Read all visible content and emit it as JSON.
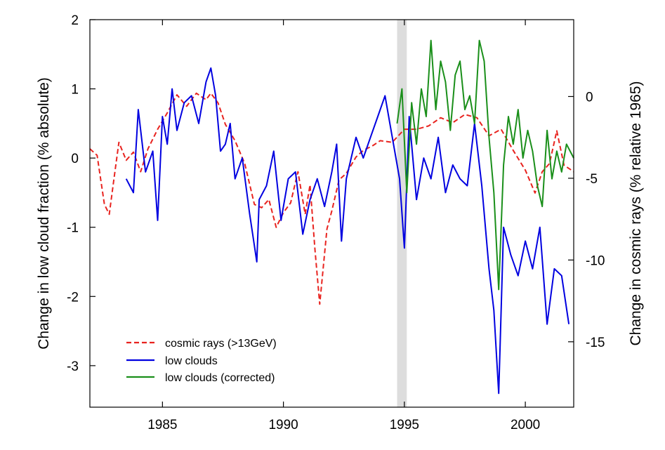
{
  "chart_data": {
    "type": "line",
    "title": "",
    "xlabel": "",
    "ylabel_left": "Change in low cloud fraction (% absolute)",
    "ylabel_right": "Change in cosmic rays (% relative 1965)",
    "xlim": [
      1982.0,
      2002.0
    ],
    "ylim_left": [
      -3.6,
      2.0
    ],
    "ylim_right": [
      -19.0,
      4.7
    ],
    "x_ticks": [
      1985,
      1990,
      1995,
      2000
    ],
    "y_ticks_left": [
      2,
      1,
      0,
      -1,
      -2,
      -3
    ],
    "y_ticks_right": [
      0,
      -5,
      -10,
      -15
    ],
    "shaded_band": {
      "x_start": 1994.7,
      "x_end": 1995.1,
      "color": "#dddddd"
    },
    "grid": false,
    "legend_position": "bottom-left",
    "series": [
      {
        "name": "cosmic rays (>13GeV)",
        "axis": "right",
        "color": "#e8231f",
        "dash": "dashed",
        "x": [
          1982.0,
          1982.3,
          1982.6,
          1982.8,
          1983.0,
          1983.2,
          1983.5,
          1983.8,
          1984.1,
          1984.4,
          1984.8,
          1985.2,
          1985.6,
          1986.0,
          1986.4,
          1986.8,
          1987.0,
          1987.3,
          1987.6,
          1988.0,
          1988.4,
          1988.8,
          1989.1,
          1989.4,
          1989.7,
          1990.0,
          1990.3,
          1990.6,
          1990.9,
          1991.1,
          1991.3,
          1991.5,
          1991.8,
          1992.0,
          1992.3,
          1992.6,
          1993.0,
          1993.3,
          1993.7,
          1994.0,
          1994.5,
          1995.0,
          1995.5,
          1996.0,
          1996.5,
          1997.0,
          1997.5,
          1998.0,
          1998.5,
          1999.0,
          1999.5,
          2000.0,
          2000.4,
          2000.7,
          2001.0,
          2001.3,
          2001.6,
          2002.0
        ],
        "y": [
          -3.2,
          -3.6,
          -6.6,
          -7.2,
          -5.0,
          -2.8,
          -3.9,
          -3.4,
          -4.6,
          -3.2,
          -2.0,
          -1.0,
          0.1,
          -0.6,
          0.2,
          -0.2,
          0.2,
          -0.4,
          -1.7,
          -2.7,
          -4.1,
          -6.6,
          -6.8,
          -6.3,
          -8.0,
          -7.1,
          -6.5,
          -4.6,
          -7.2,
          -5.4,
          -9.3,
          -12.7,
          -8.1,
          -7.0,
          -5.1,
          -4.7,
          -3.7,
          -3.3,
          -3.0,
          -2.7,
          -2.8,
          -2.0,
          -2.0,
          -1.8,
          -1.3,
          -1.6,
          -1.1,
          -1.3,
          -2.4,
          -2.0,
          -3.3,
          -4.5,
          -5.9,
          -4.6,
          -4.1,
          -2.1,
          -4.2,
          -4.6
        ]
      },
      {
        "name": "low clouds",
        "axis": "left",
        "color": "#0000e0",
        "dash": "solid",
        "x": [
          1983.5,
          1983.8,
          1984.0,
          1984.3,
          1984.6,
          1984.8,
          1985.0,
          1985.2,
          1985.4,
          1985.6,
          1985.9,
          1986.2,
          1986.5,
          1986.8,
          1987.0,
          1987.2,
          1987.4,
          1987.6,
          1987.8,
          1988.0,
          1988.3,
          1988.6,
          1988.9,
          1989.0,
          1989.3,
          1989.6,
          1989.9,
          1990.2,
          1990.5,
          1990.8,
          1991.1,
          1991.4,
          1991.7,
          1992.0,
          1992.2,
          1992.4,
          1992.6,
          1992.8,
          1993.0,
          1993.3,
          1993.6,
          1993.9,
          1994.2,
          1994.4,
          1994.6,
          1994.8,
          1995.0,
          1995.2,
          1995.5,
          1995.8,
          1996.1,
          1996.4,
          1996.7,
          1997.0,
          1997.3,
          1997.6,
          1997.9,
          1998.2,
          1998.5,
          1998.7,
          1998.9,
          1999.1,
          1999.4,
          1999.7,
          2000.0,
          2000.3,
          2000.6,
          2000.9,
          2001.2,
          2001.5,
          2001.8
        ],
        "y": [
          -0.3,
          -0.5,
          0.7,
          -0.2,
          0.1,
          -0.9,
          0.6,
          0.2,
          1.0,
          0.4,
          0.8,
          0.9,
          0.5,
          1.1,
          1.3,
          0.9,
          0.1,
          0.2,
          0.5,
          -0.3,
          0.0,
          -0.8,
          -1.5,
          -0.6,
          -0.4,
          0.1,
          -0.9,
          -0.3,
          -0.2,
          -1.1,
          -0.6,
          -0.3,
          -0.7,
          -0.2,
          0.2,
          -1.2,
          -0.3,
          0.0,
          0.3,
          0.0,
          0.3,
          0.6,
          0.9,
          0.5,
          0.1,
          -0.3,
          -1.3,
          0.6,
          -0.6,
          0.0,
          -0.3,
          0.3,
          -0.5,
          -0.1,
          -0.3,
          -0.4,
          0.5,
          -0.4,
          -1.6,
          -2.2,
          -3.4,
          -1.0,
          -1.4,
          -1.7,
          -1.2,
          -1.6,
          -1.0,
          -2.4,
          -1.6,
          -1.7,
          -2.4
        ]
      },
      {
        "name": "low clouds (corrected)",
        "axis": "left",
        "color": "#1a8f1a",
        "dash": "solid",
        "x": [
          1994.7,
          1994.9,
          1995.1,
          1995.3,
          1995.5,
          1995.7,
          1995.9,
          1996.1,
          1996.3,
          1996.5,
          1996.7,
          1996.9,
          1997.1,
          1997.3,
          1997.5,
          1997.7,
          1997.9,
          1998.1,
          1998.3,
          1998.5,
          1998.7,
          1998.9,
          1999.1,
          1999.3,
          1999.5,
          1999.7,
          1999.9,
          2000.1,
          2000.3,
          2000.5,
          2000.7,
          2000.9,
          2001.1,
          2001.3,
          2001.5,
          2001.7,
          2002.0
        ],
        "y": [
          0.5,
          1.0,
          -0.5,
          0.8,
          0.2,
          1.0,
          0.6,
          1.7,
          0.7,
          1.4,
          1.1,
          0.4,
          1.2,
          1.4,
          0.7,
          0.9,
          0.5,
          1.7,
          1.4,
          0.3,
          -0.5,
          -1.9,
          -0.1,
          0.6,
          0.2,
          0.7,
          0.0,
          0.4,
          0.1,
          -0.4,
          -0.7,
          0.4,
          -0.3,
          0.1,
          -0.2,
          0.2,
          0.0
        ]
      }
    ]
  }
}
